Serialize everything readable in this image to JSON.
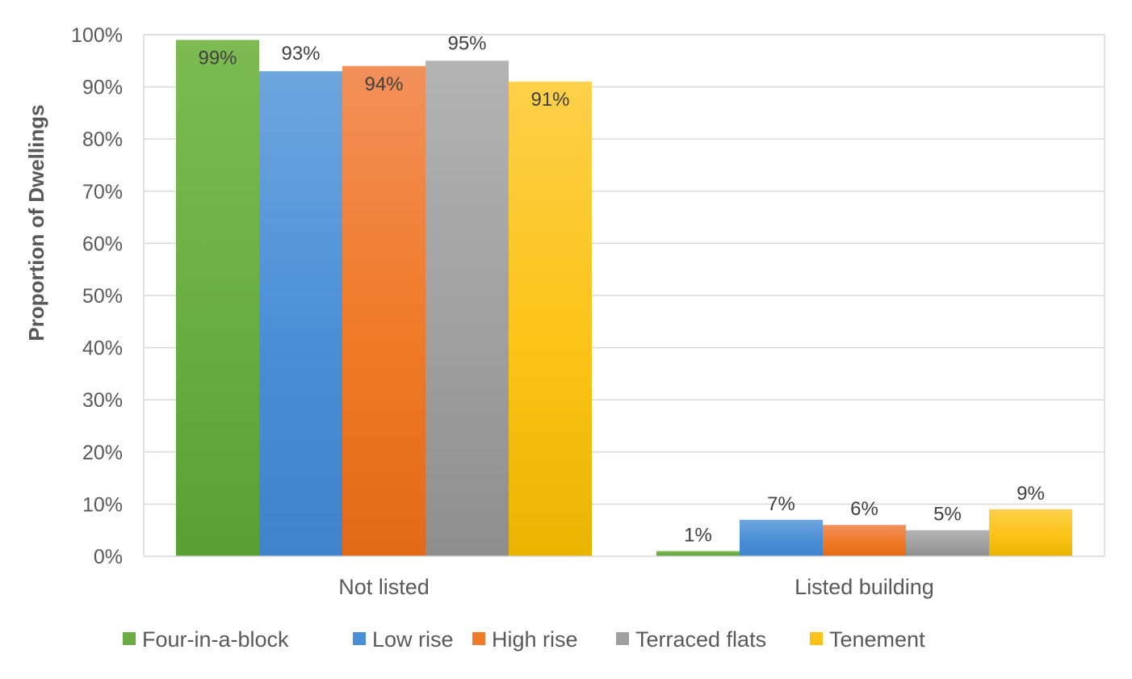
{
  "chart_data": {
    "type": "bar",
    "title": "",
    "xlabel": "",
    "ylabel": "Proportion of Dwellings",
    "ylim": [
      0,
      100
    ],
    "y_ticks": [
      "0%",
      "10%",
      "20%",
      "30%",
      "40%",
      "50%",
      "60%",
      "70%",
      "80%",
      "90%",
      "100%"
    ],
    "categories": [
      "Not listed",
      "Listed building"
    ],
    "grid": true,
    "legend_position": "bottom",
    "series": [
      {
        "name": "Four-in-a-block",
        "values": [
          99,
          1
        ],
        "labels": [
          "99%",
          "1%"
        ],
        "color": "#6aad44",
        "color_light": "#7dbb52",
        "color_dark": "#5a9e36"
      },
      {
        "name": "Low rise",
        "values": [
          93,
          7
        ],
        "labels": [
          "93%",
          "7%"
        ],
        "color": "#4a8fd6",
        "color_light": "#6ea6de",
        "color_dark": "#3f83cc"
      },
      {
        "name": "High rise",
        "values": [
          94,
          6
        ],
        "labels": [
          "94%",
          "6%"
        ],
        "color": "#ef7a28",
        "color_light": "#f2905a",
        "color_dark": "#e06a18"
      },
      {
        "name": "Terraced flats",
        "values": [
          95,
          5
        ],
        "labels": [
          "95%",
          "5%"
        ],
        "color": "#a0a0a0",
        "color_light": "#b3b3b3",
        "color_dark": "#8e8e8e"
      },
      {
        "name": "Tenement",
        "values": [
          91,
          9
        ],
        "labels": [
          "91%",
          "9%"
        ],
        "color": "#fcc418",
        "color_light": "#fdd04a",
        "color_dark": "#e8b400"
      }
    ]
  }
}
